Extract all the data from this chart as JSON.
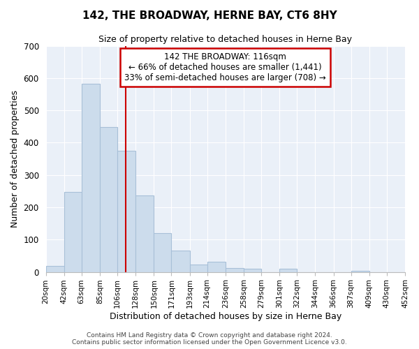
{
  "title": "142, THE BROADWAY, HERNE BAY, CT6 8HY",
  "subtitle": "Size of property relative to detached houses in Herne Bay",
  "xlabel": "Distribution of detached houses by size in Herne Bay",
  "ylabel": "Number of detached properties",
  "footer_line1": "Contains HM Land Registry data © Crown copyright and database right 2024.",
  "footer_line2": "Contains public sector information licensed under the Open Government Licence v3.0.",
  "bin_labels": [
    "20sqm",
    "42sqm",
    "63sqm",
    "85sqm",
    "106sqm",
    "128sqm",
    "150sqm",
    "171sqm",
    "193sqm",
    "214sqm",
    "236sqm",
    "258sqm",
    "279sqm",
    "301sqm",
    "322sqm",
    "344sqm",
    "366sqm",
    "387sqm",
    "409sqm",
    "430sqm",
    "452sqm"
  ],
  "bar_values": [
    18,
    247,
    582,
    449,
    375,
    236,
    121,
    67,
    22,
    31,
    13,
    9,
    0,
    10,
    0,
    0,
    0,
    4,
    0,
    0,
    0
  ],
  "bar_color": "#ccdcec",
  "bar_edge_color": "#a8c0d8",
  "vline_x": 116,
  "vline_color": "#cc0000",
  "ylim": [
    0,
    700
  ],
  "yticks": [
    0,
    100,
    200,
    300,
    400,
    500,
    600,
    700
  ],
  "annotation_title": "142 THE BROADWAY: 116sqm",
  "annotation_line1": "← 66% of detached houses are smaller (1,441)",
  "annotation_line2": "33% of semi-detached houses are larger (708) →",
  "annotation_box_color": "#ffffff",
  "annotation_box_edge": "#cc0000",
  "bin_edges": [
    20,
    42,
    63,
    85,
    106,
    128,
    150,
    171,
    193,
    214,
    236,
    258,
    279,
    301,
    322,
    344,
    366,
    387,
    409,
    430,
    452
  ],
  "plot_bg_color": "#eaf0f8",
  "grid_color": "#ffffff"
}
